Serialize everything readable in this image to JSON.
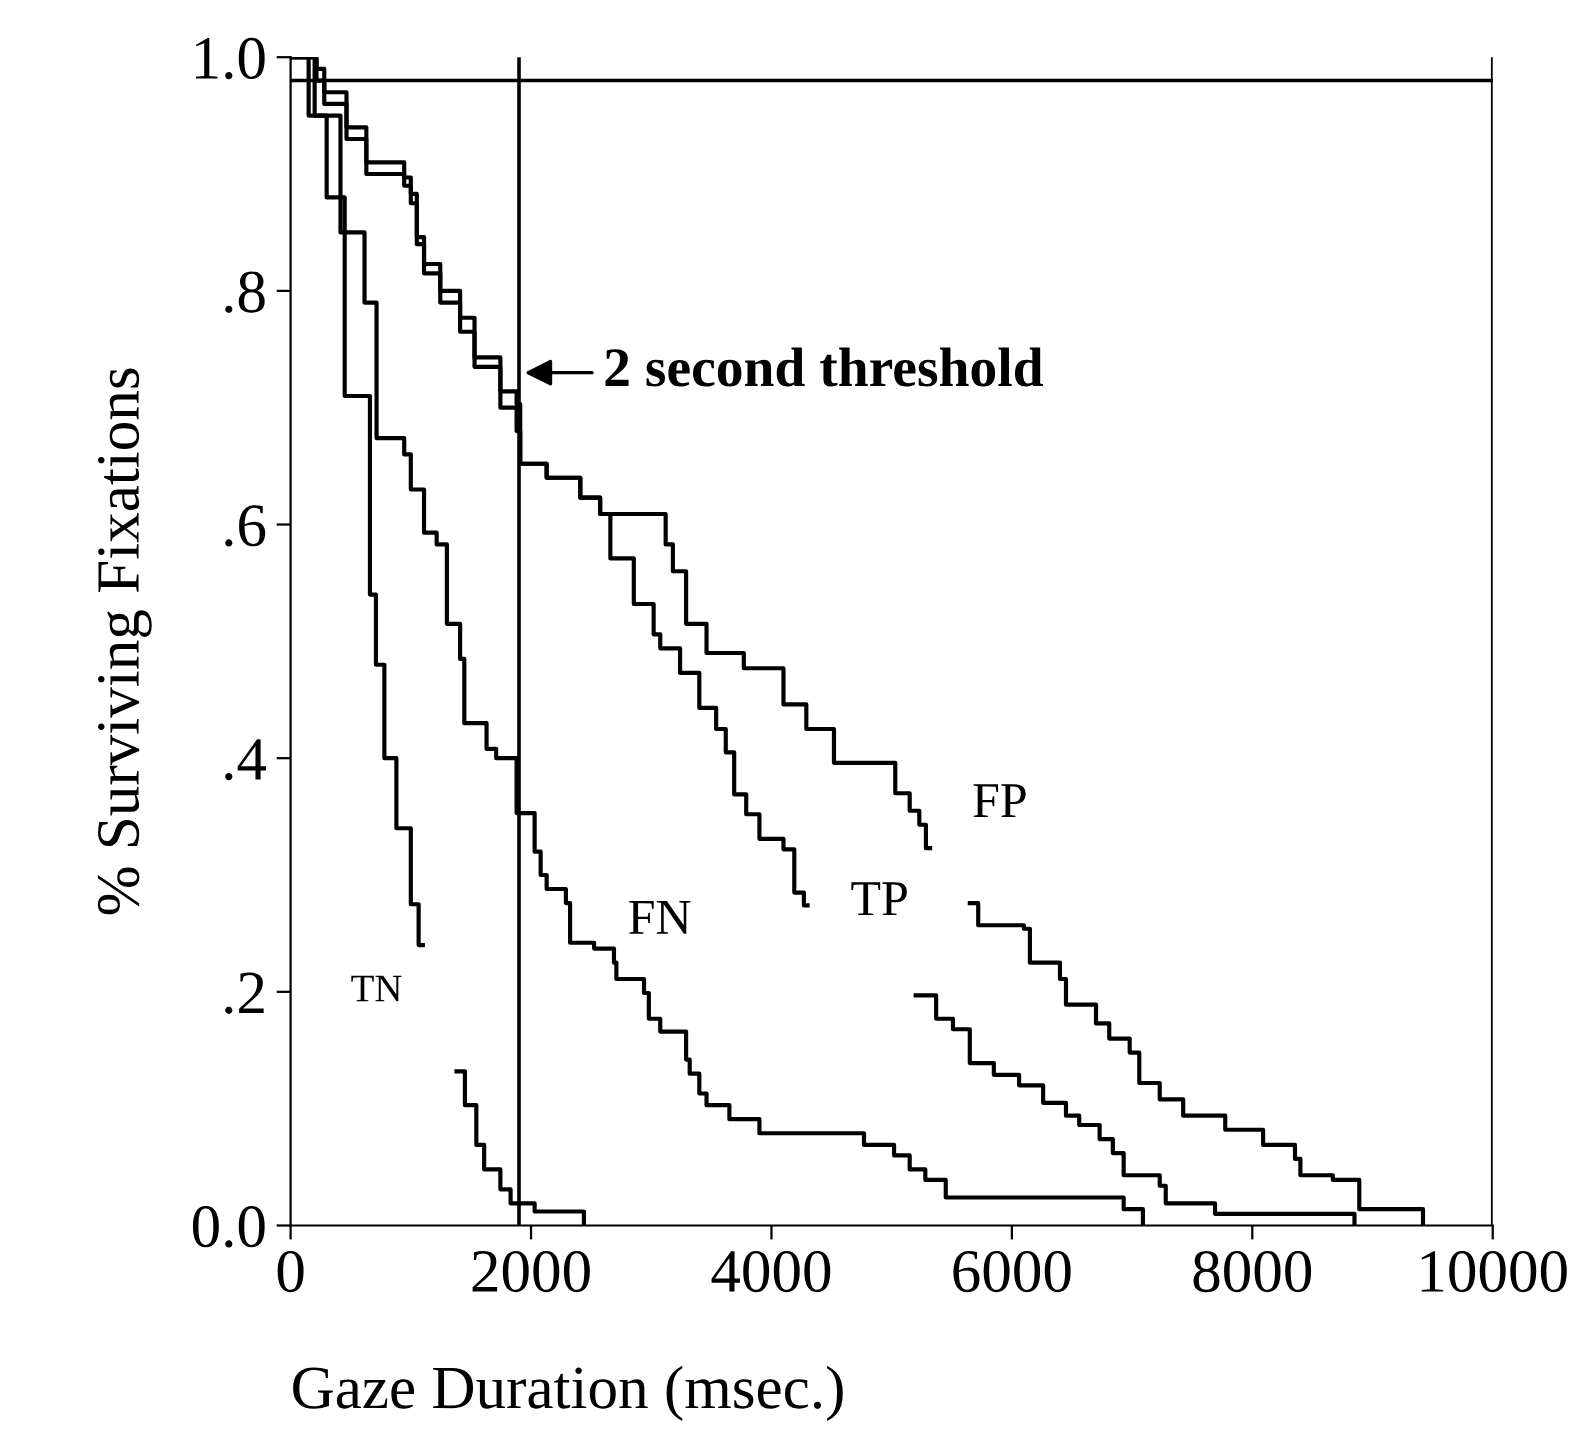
{
  "chart_data": {
    "type": "step",
    "xlabel": "Gaze Duration (msec.)",
    "ylabel": "% Surviving Fixations",
    "xlim": [
      0,
      10000
    ],
    "ylim": [
      0,
      1.0
    ],
    "xticks": [
      0,
      2000,
      4000,
      6000,
      8000,
      10000
    ],
    "yticks": [
      {
        "value": 0,
        "label": "0.0"
      },
      {
        "value": 0.2,
        "label": ".2"
      },
      {
        "value": 0.4,
        "label": ".4"
      },
      {
        "value": 0.6,
        "label": ".6"
      },
      {
        "value": 0.8,
        "label": ".8"
      },
      {
        "value": 1.0,
        "label": "1.0"
      }
    ],
    "grid": false,
    "marker": "none",
    "line_style": "solid",
    "series": [
      {
        "color": "#000000",
        "x": [
          0,
          150,
          300,
          450,
          660,
          710,
          780,
          880,
          1000,
          1065,
          1100,
          1380,
          1450,
          1545,
          1610,
          1745,
          1830,
          2030,
          2440
        ],
        "values": [
          1.0,
          0.95,
          0.88,
          0.71,
          0.54,
          0.48,
          0.4,
          0.34,
          0.275,
          0.24,
          null,
          0.132,
          0.103,
          0.069,
          0.048,
          0.031,
          0.019,
          0.012,
          0
        ]
      },
      {
        "color": "#000000",
        "x": [
          0,
          200,
          415,
          615,
          715,
          945,
          1000,
          1110,
          1215,
          1300,
          1410,
          1445,
          1630,
          1710,
          1880,
          2030,
          2080,
          2130,
          2290,
          2325,
          2525,
          2690,
          2710,
          2940,
          2980,
          3075,
          3290,
          3320,
          3400,
          3460,
          3650,
          3900,
          4770,
          5020,
          5150,
          5280,
          5450,
          6400,
          6930,
          7090
        ],
        "values": [
          1.0,
          0.95,
          0.85,
          0.79,
          0.674,
          0.66,
          0.63,
          0.593,
          0.583,
          0.515,
          0.485,
          0.43,
          0.408,
          0.4,
          0.353,
          0.32,
          0.3,
          0.288,
          0.276,
          0.242,
          0.237,
          0.225,
          0.211,
          0.199,
          0.177,
          0.166,
          0.142,
          0.13,
          0.113,
          0.103,
          0.091,
          0.079,
          0.069,
          0.06,
          0.048,
          0.039,
          0.024,
          0.024,
          0.014,
          0
        ]
      },
      {
        "color": "#000000",
        "x": [
          0,
          215,
          280,
          465,
          630,
          945,
          1000,
          1050,
          1110,
          1245,
          1410,
          1530,
          1745,
          1880,
          1910,
          2130,
          2410,
          2575,
          2660,
          2855,
          3020,
          3075,
          3240,
          3400,
          3540,
          3620,
          3690,
          3790,
          3900,
          4100,
          4190,
          4270,
          4300,
          5200,
          5370,
          5510,
          5650,
          5850,
          6060,
          6260,
          6450,
          6560,
          6730,
          6840,
          6930,
          7230,
          7280,
          7690,
          8850
        ],
        "values": [
          1.0,
          0.98,
          0.96,
          0.93,
          0.9,
          0.89,
          0.875,
          0.84,
          0.815,
          0.79,
          0.765,
          0.735,
          0.7,
          0.68,
          0.652,
          0.64,
          0.623,
          0.609,
          0.571,
          0.532,
          0.506,
          0.494,
          0.473,
          0.443,
          0.425,
          0.405,
          0.369,
          0.352,
          0.331,
          0.322,
          0.285,
          0.274,
          null,
          0.197,
          0.177,
          0.168,
          0.139,
          0.129,
          0.12,
          0.105,
          0.094,
          0.086,
          0.074,
          0.062,
          0.043,
          0.034,
          0.019,
          0.01,
          0
        ]
      },
      {
        "color": "#000000",
        "x": [
          0,
          215,
          280,
          465,
          630,
          945,
          1000,
          1050,
          1110,
          1245,
          1410,
          1530,
          1745,
          1880,
          1910,
          2130,
          2410,
          2575,
          3120,
          3180,
          3290,
          3460,
          3770,
          4100,
          4290,
          4520,
          5030,
          5150,
          5230,
          5285,
          5320,
          5650,
          5720,
          6100,
          6150,
          6400,
          6450,
          6700,
          6810,
          6980,
          7060,
          7230,
          7425,
          7775,
          8090,
          8355,
          8400,
          8670,
          8890,
          9420
        ],
        "values": [
          1.0,
          0.99,
          0.97,
          0.94,
          0.91,
          0.897,
          0.883,
          0.846,
          0.823,
          0.8,
          0.777,
          0.743,
          0.714,
          0.703,
          0.652,
          0.64,
          0.623,
          0.609,
          0.583,
          0.56,
          0.515,
          0.49,
          0.477,
          0.446,
          0.425,
          0.396,
          0.37,
          0.355,
          0.343,
          0.323,
          null,
          0.276,
          0.257,
          0.254,
          0.225,
          0.211,
          0.189,
          0.173,
          0.16,
          0.148,
          0.122,
          0.108,
          0.094,
          0.082,
          0.069,
          0.057,
          0.043,
          0.039,
          0.014,
          0
        ]
      }
    ],
    "ref_lines": [
      {
        "axis": "x",
        "value": 1900,
        "label": "2 second threshold"
      },
      {
        "axis": "y",
        "value": 0.98
      },
      {
        "axis": "x",
        "value": 10000
      }
    ],
    "annotations": [
      "TN",
      "FN",
      "TP",
      "FP"
    ]
  }
}
